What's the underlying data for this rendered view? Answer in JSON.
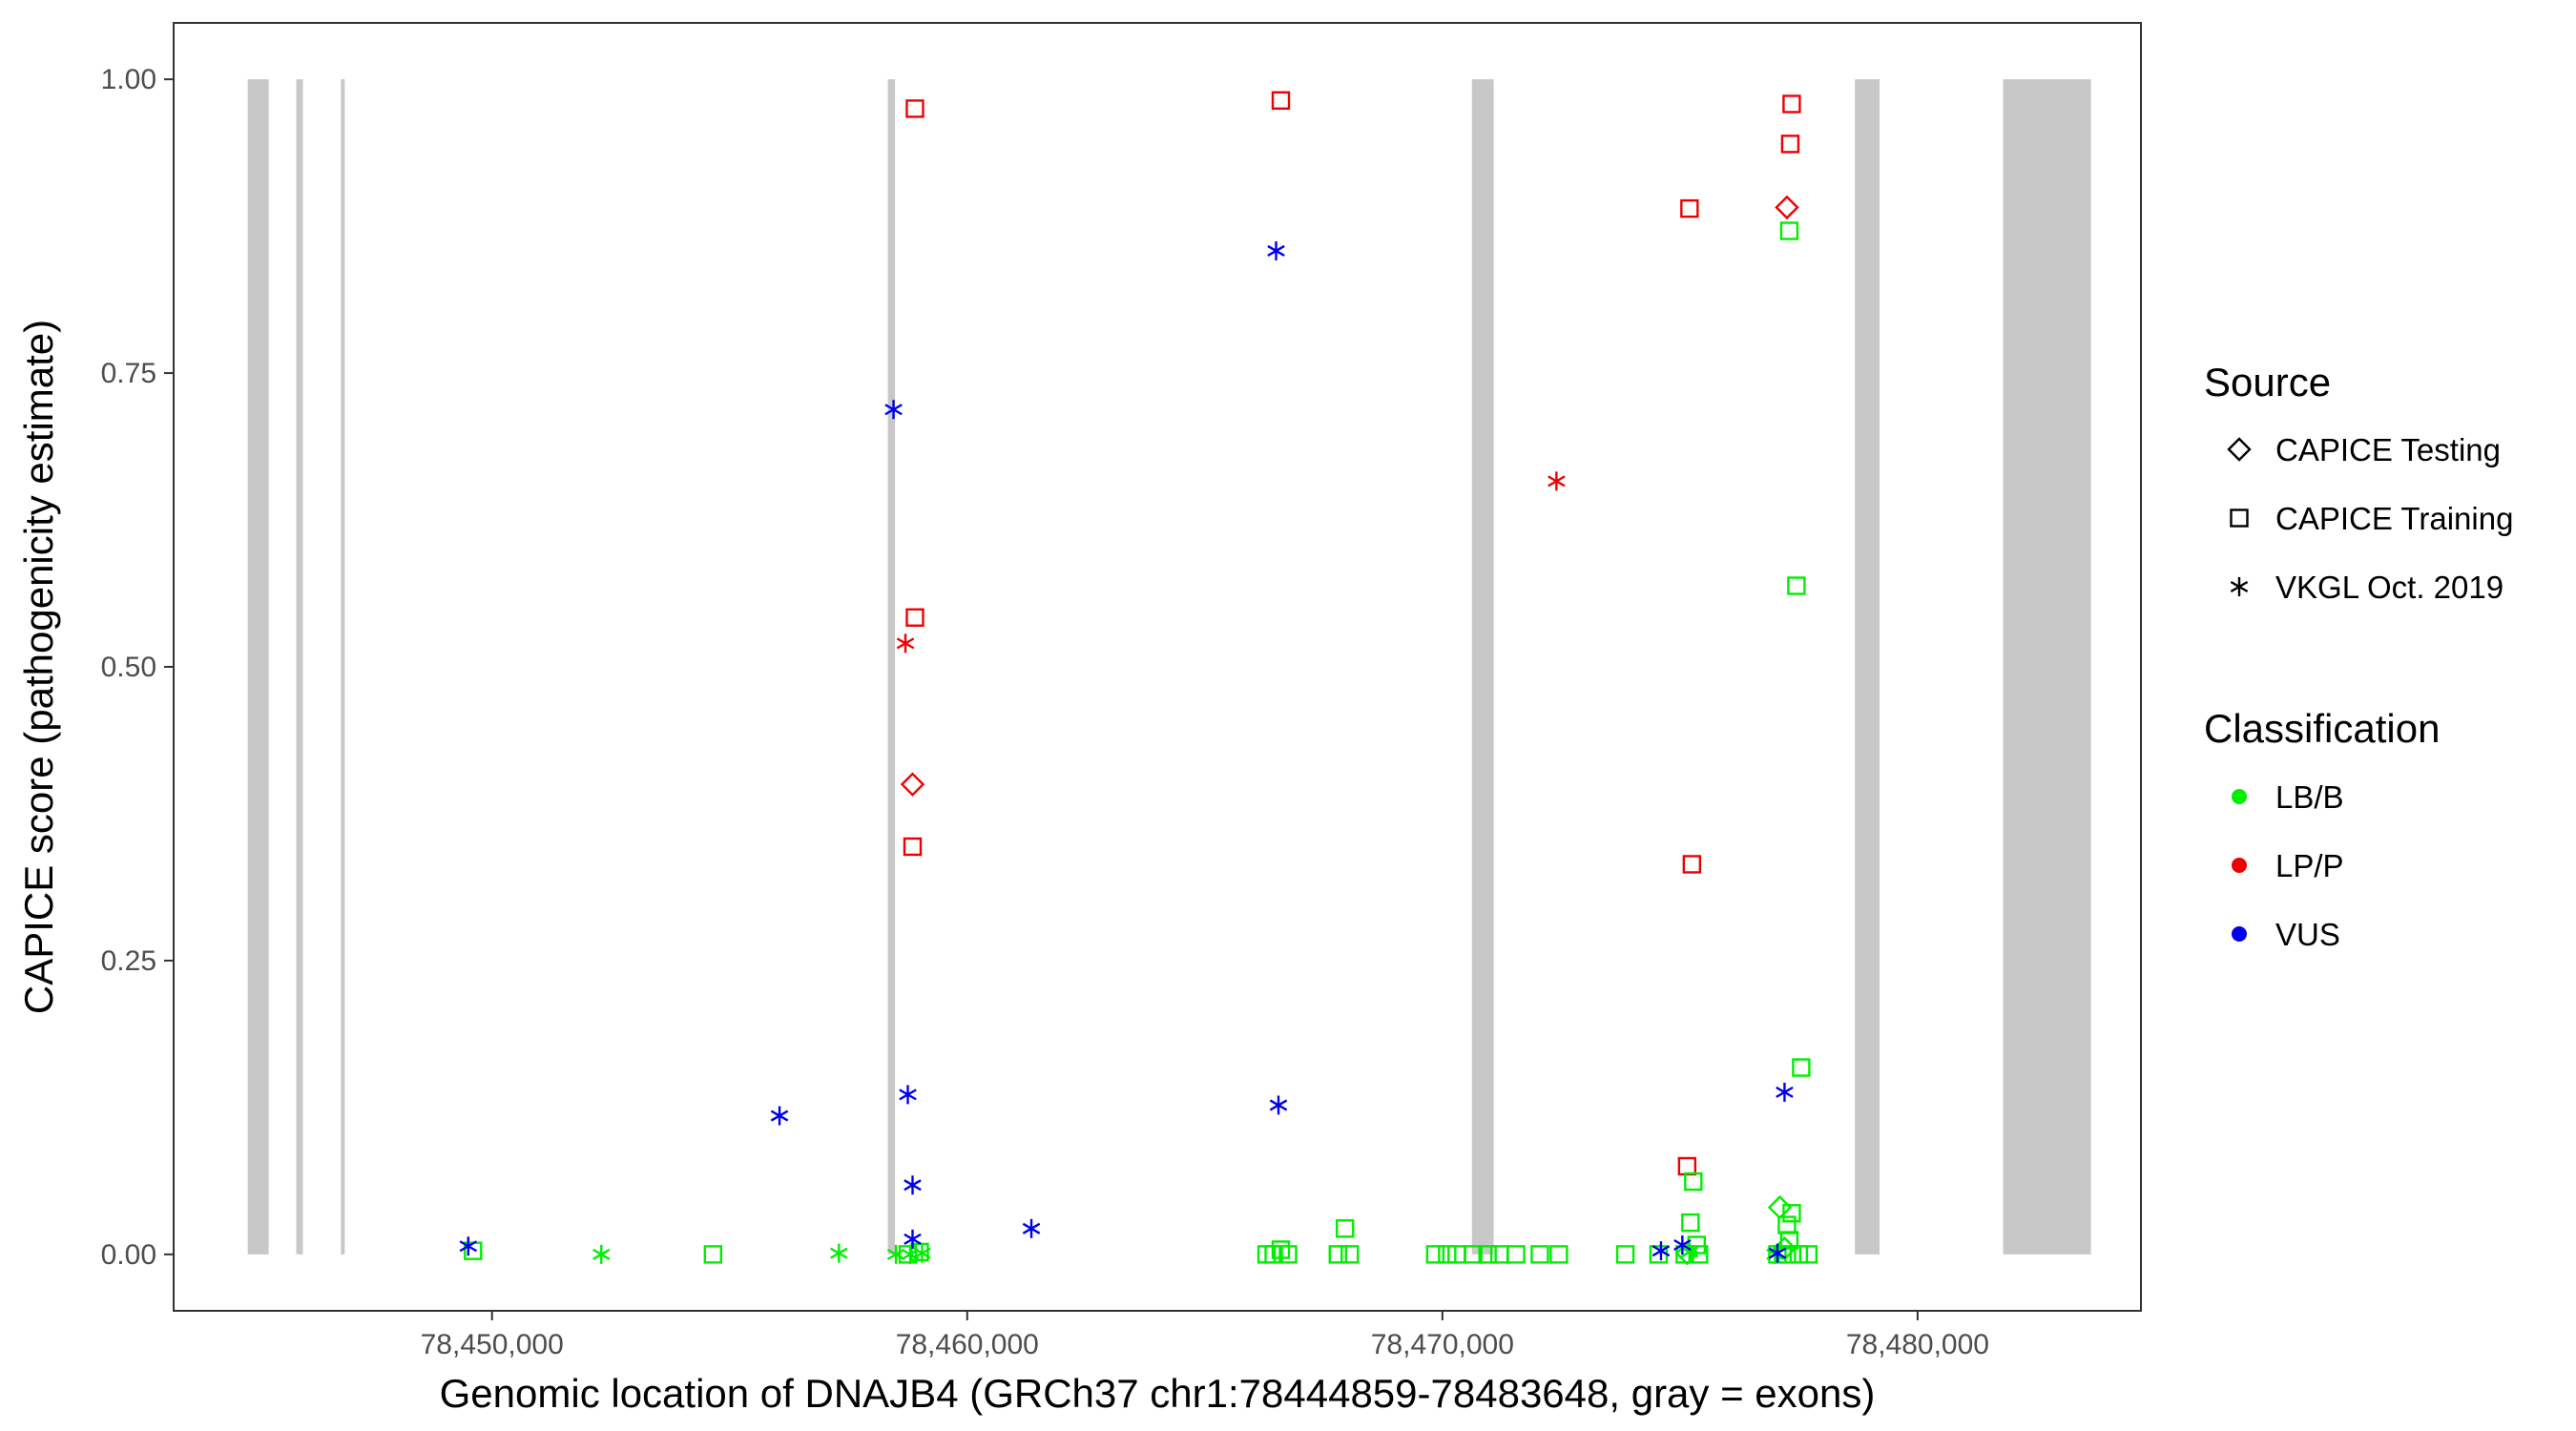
{
  "chart_data": {
    "type": "scatter",
    "title": "",
    "xlabel": "Genomic location of DNAJB4 (GRCh37 chr1:78444859-78483648, gray = exons)",
    "ylabel": "CAPICE score (pathogenicity estimate)",
    "xlim": [
      78443300,
      78484700
    ],
    "ylim": [
      -0.048,
      1.048
    ],
    "x_ticks": [
      78450000,
      78460000,
      78470000,
      78480000
    ],
    "x_tick_labels": [
      "78,450,000",
      "78,460,000",
      "78,470,000",
      "78,480,000"
    ],
    "y_ticks": [
      0,
      0.25,
      0.5,
      0.75,
      1
    ],
    "y_tick_labels": [
      "0.00",
      "0.25",
      "0.50",
      "0.75",
      "1.00"
    ],
    "grid": false,
    "legend_position": "right",
    "exons": [
      [
        78444859,
        78445300
      ],
      [
        78445880,
        78446020
      ],
      [
        78446820,
        78446900
      ],
      [
        78458330,
        78458480
      ],
      [
        78470620,
        78471080
      ],
      [
        78478680,
        78479200
      ],
      [
        78481800,
        78483648
      ]
    ],
    "legends": {
      "source": {
        "title": "Source",
        "items": [
          {
            "label": "CAPICE Testing",
            "shape": "diamond"
          },
          {
            "label": "CAPICE Training",
            "shape": "square"
          },
          {
            "label": "VKGL Oct. 2019",
            "shape": "asterisk"
          }
        ]
      },
      "classification": {
        "title": "Classification",
        "items": [
          {
            "label": "LB/B",
            "color": "#00ee00"
          },
          {
            "label": "LP/P",
            "color": "#ee0000"
          },
          {
            "label": "VUS",
            "color": "#0000ee"
          }
        ]
      }
    },
    "series": [
      {
        "source": "CAPICE Training",
        "classification": "LP/P",
        "points": [
          [
            78458900,
            0.975
          ],
          [
            78466600,
            0.982
          ],
          [
            78477350,
            0.979
          ],
          [
            78477320,
            0.945
          ],
          [
            78475200,
            0.89
          ],
          [
            78458900,
            0.542
          ],
          [
            78458850,
            0.347
          ],
          [
            78475250,
            0.332
          ],
          [
            78475150,
            0.075
          ]
        ]
      },
      {
        "source": "CAPICE Testing",
        "classification": "LP/P",
        "points": [
          [
            78477250,
            0.891
          ],
          [
            78458850,
            0.4
          ]
        ]
      },
      {
        "source": "VKGL Oct. 2019",
        "classification": "LP/P",
        "points": [
          [
            78472400,
            0.658
          ],
          [
            78458700,
            0.52
          ]
        ]
      },
      {
        "source": "CAPICE Training",
        "classification": "LB/B",
        "points": [
          [
            78477300,
            0.871
          ],
          [
            78477450,
            0.569
          ],
          [
            78477550,
            0.159
          ],
          [
            78475280,
            0.062
          ],
          [
            78475220,
            0.027
          ],
          [
            78477350,
            0.035
          ],
          [
            78477250,
            0.025
          ],
          [
            78477300,
            0.012
          ],
          [
            78449600,
            0.003
          ],
          [
            78454650,
            0.0
          ],
          [
            78458750,
            0.0
          ],
          [
            78459000,
            0.002
          ],
          [
            78466300,
            0.0
          ],
          [
            78466450,
            0.0
          ],
          [
            78466600,
            0.004
          ],
          [
            78466750,
            0.0
          ],
          [
            78467950,
            0.022
          ],
          [
            78467800,
            0.0
          ],
          [
            78468050,
            0.0
          ],
          [
            78469850,
            0.0
          ],
          [
            78470100,
            0.0
          ],
          [
            78470300,
            0.0
          ],
          [
            78470650,
            0.0
          ],
          [
            78470950,
            0.0
          ],
          [
            78471200,
            0.0
          ],
          [
            78471550,
            0.0
          ],
          [
            78472050,
            0.0
          ],
          [
            78472450,
            0.0
          ],
          [
            78473850,
            0.0
          ],
          [
            78474550,
            0.0
          ],
          [
            78475100,
            0.0
          ],
          [
            78475350,
            0.008
          ],
          [
            78475400,
            0.0
          ],
          [
            78477050,
            0.0
          ],
          [
            78477250,
            0.0
          ],
          [
            78477500,
            0.0
          ],
          [
            78477700,
            0.0
          ]
        ]
      },
      {
        "source": "CAPICE Testing",
        "classification": "LB/B",
        "points": [
          [
            78477100,
            0.04
          ],
          [
            78475150,
            0.001
          ],
          [
            78477200,
            0.005
          ]
        ]
      },
      {
        "source": "VKGL Oct. 2019",
        "classification": "LB/B",
        "points": [
          [
            78452300,
            0.0
          ],
          [
            78457300,
            0.001
          ],
          [
            78458500,
            0.0
          ],
          [
            78458800,
            0.0
          ],
          [
            78459050,
            0.001
          ],
          [
            78475200,
            0.002
          ],
          [
            78477000,
            0.0
          ]
        ]
      },
      {
        "source": "VKGL Oct. 2019",
        "classification": "VUS",
        "points": [
          [
            78466500,
            0.854
          ],
          [
            78458450,
            0.719
          ],
          [
            78458750,
            0.136
          ],
          [
            78466550,
            0.127
          ],
          [
            78477200,
            0.138
          ],
          [
            78456050,
            0.118
          ],
          [
            78458850,
            0.059
          ],
          [
            78461350,
            0.022
          ],
          [
            78458850,
            0.013
          ],
          [
            78449500,
            0.007
          ],
          [
            78474600,
            0.003
          ],
          [
            78475050,
            0.008
          ],
          [
            78477050,
            0.001
          ]
        ]
      }
    ]
  }
}
